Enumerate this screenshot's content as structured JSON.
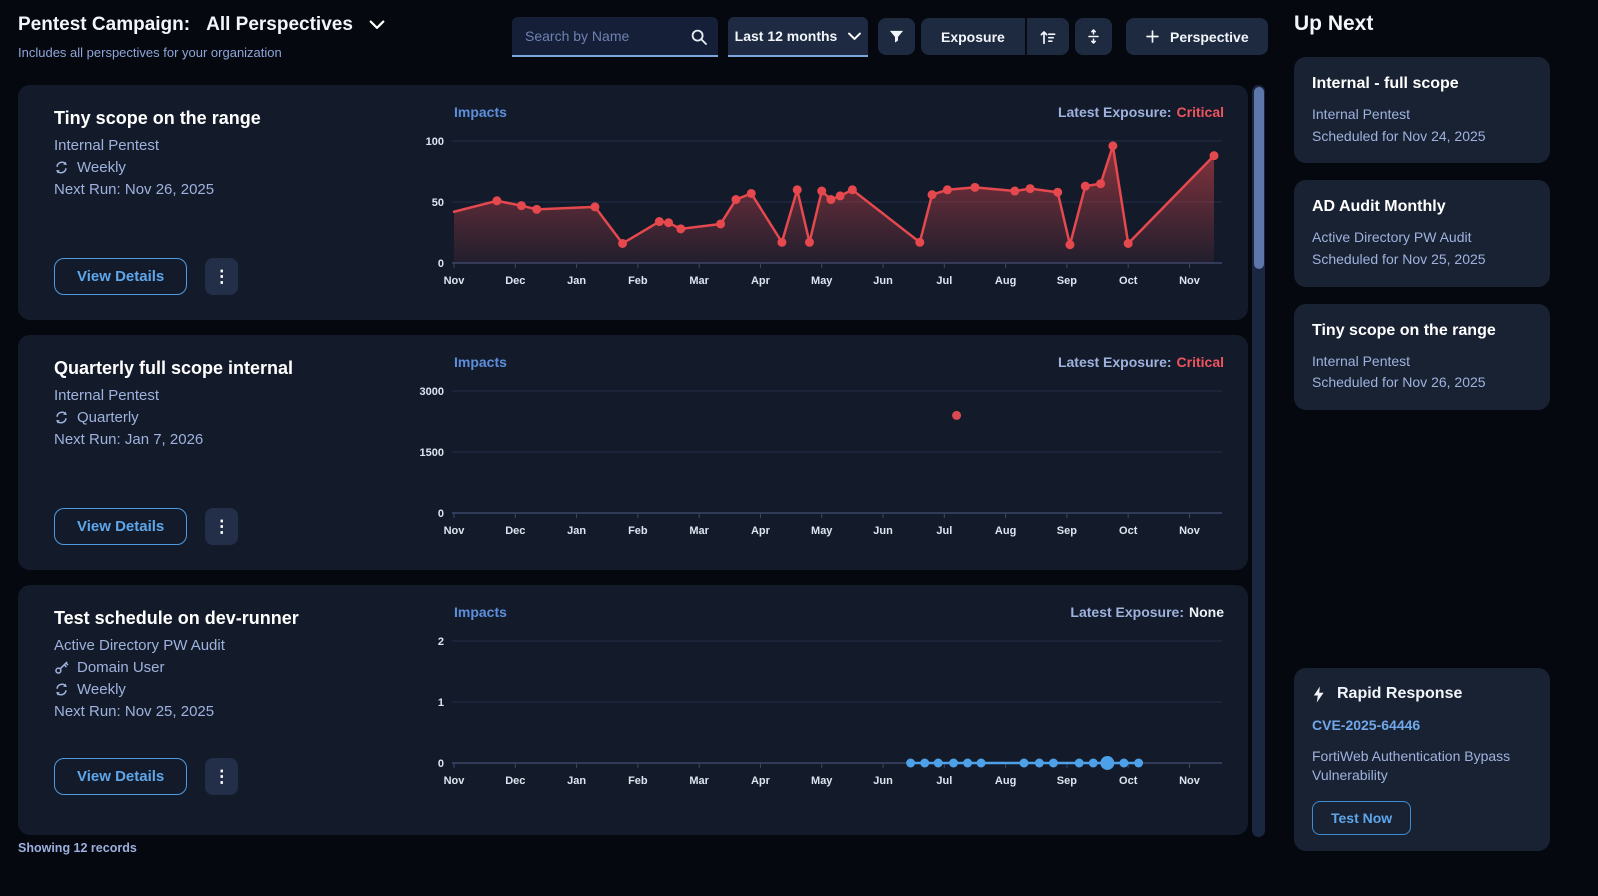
{
  "header": {
    "title": "Pentest Campaign:",
    "perspective": "All Perspectives",
    "subtitle": "Includes all perspectives for your organization"
  },
  "toolbar": {
    "search_placeholder": "Search by Name",
    "time_range": "Last 12 months",
    "sort_by": "Exposure",
    "new_perspective": "Perspective"
  },
  "cards": [
    {
      "title": "Tiny scope on the range",
      "type": "Internal Pentest",
      "cadence": "Weekly",
      "next_run": "Next Run: Nov 26, 2025",
      "view_details": "View Details"
    },
    {
      "title": "Quarterly full scope internal",
      "type": "Internal Pentest",
      "cadence": "Quarterly",
      "next_run": "Next Run: Jan 7, 2026",
      "view_details": "View Details"
    },
    {
      "title": "Test schedule on dev-runner",
      "type": "Active Directory PW Audit",
      "credential": "Domain User",
      "cadence": "Weekly",
      "next_run": "Next Run: Nov 25, 2025",
      "view_details": "View Details"
    }
  ],
  "up_next": {
    "heading": "Up Next",
    "items": [
      {
        "title": "Internal - full scope",
        "type": "Internal Pentest",
        "scheduled": "Scheduled for Nov 24, 2025"
      },
      {
        "title": "AD Audit Monthly",
        "type": "Active Directory PW Audit",
        "scheduled": "Scheduled for Nov 25, 2025"
      },
      {
        "title": "Tiny scope on the range",
        "type": "Internal Pentest",
        "scheduled": "Scheduled for Nov 26, 2025"
      }
    ],
    "rapid_response": {
      "title": "Rapid Response",
      "cve": "CVE-2025-64446",
      "description": "FortiWeb Authentication Bypass Vulnerability",
      "button": "Test Now"
    }
  },
  "footer": {
    "records": "Showing 12 records"
  },
  "colors": {
    "accent_blue": "#5ea6ea",
    "chart_red": "#e5484d",
    "chart_blue": "#4ea1e8",
    "critical_red": "#f0545e",
    "card_bg": "#131b2b",
    "page_bg": "#05080f"
  },
  "chart_data": [
    {
      "type": "line",
      "title": "Impacts",
      "exposure_label": "Latest Exposure:",
      "exposure_value": "Critical",
      "exposure_color": "#f0545e",
      "line_color": "#e5484d",
      "area": true,
      "y_ticks": [
        0,
        50,
        100
      ],
      "y_top": 100,
      "x_labels": [
        "Nov",
        "Dec",
        "Jan",
        "Feb",
        "Mar",
        "Apr",
        "May",
        "Jun",
        "Jul",
        "Aug",
        "Sep",
        "Oct",
        "Nov"
      ],
      "x_max": 12.4,
      "points": [
        [
          0,
          42,
          0
        ],
        [
          0.7,
          51
        ],
        [
          1.1,
          47
        ],
        [
          1.35,
          44
        ],
        [
          2.3,
          46
        ],
        [
          2.75,
          16
        ],
        [
          3.35,
          34
        ],
        [
          3.5,
          33
        ],
        [
          3.7,
          28
        ],
        [
          4.35,
          32
        ],
        [
          4.6,
          52
        ],
        [
          4.85,
          57
        ],
        [
          5.35,
          17
        ],
        [
          5.6,
          60
        ],
        [
          5.8,
          17
        ],
        [
          6.0,
          59
        ],
        [
          6.15,
          52
        ],
        [
          6.3,
          55
        ],
        [
          6.5,
          60
        ],
        [
          7.6,
          17
        ],
        [
          7.8,
          56
        ],
        [
          8.05,
          60
        ],
        [
          8.5,
          62
        ],
        [
          9.15,
          59
        ],
        [
          9.4,
          61
        ],
        [
          9.85,
          58
        ],
        [
          10.05,
          15
        ],
        [
          10.3,
          63
        ],
        [
          10.55,
          65
        ],
        [
          10.75,
          96
        ],
        [
          11.0,
          16
        ],
        [
          12.4,
          88
        ]
      ]
    },
    {
      "type": "scatter",
      "title": "Impacts",
      "exposure_label": "Latest Exposure:",
      "exposure_value": "Critical",
      "exposure_color": "#f0545e",
      "line_color": "#d94a52",
      "area": false,
      "draw_line": false,
      "y_ticks": [
        0,
        1500,
        3000
      ],
      "y_top": 3000,
      "x_labels": [
        "Nov",
        "Dec",
        "Jan",
        "Feb",
        "Mar",
        "Apr",
        "May",
        "Jun",
        "Jul",
        "Aug",
        "Sep",
        "Oct",
        "Nov"
      ],
      "x_max": 12.4,
      "points": [
        [
          8.2,
          2400
        ]
      ]
    },
    {
      "type": "line",
      "title": "Impacts",
      "exposure_label": "Latest Exposure:",
      "exposure_value": "None",
      "exposure_color": "#eef2f8",
      "line_color": "#4ea1e8",
      "area": false,
      "y_ticks": [
        0,
        1,
        2
      ],
      "y_top": 2,
      "x_labels": [
        "Nov",
        "Dec",
        "Jan",
        "Feb",
        "Mar",
        "Apr",
        "May",
        "Jun",
        "Jul",
        "Aug",
        "Sep",
        "Oct",
        "Nov"
      ],
      "x_max": 12.4,
      "points": [
        [
          7.45,
          0
        ],
        [
          7.68,
          0
        ],
        [
          7.9,
          0
        ],
        [
          8.15,
          0
        ],
        [
          8.38,
          0
        ],
        [
          8.6,
          0
        ],
        [
          9.3,
          0
        ],
        [
          9.55,
          0
        ],
        [
          9.78,
          0
        ],
        [
          10.2,
          0
        ],
        [
          10.43,
          0
        ],
        [
          10.66,
          0,
          1.55
        ],
        [
          10.93,
          0
        ],
        [
          11.17,
          0
        ]
      ]
    }
  ]
}
